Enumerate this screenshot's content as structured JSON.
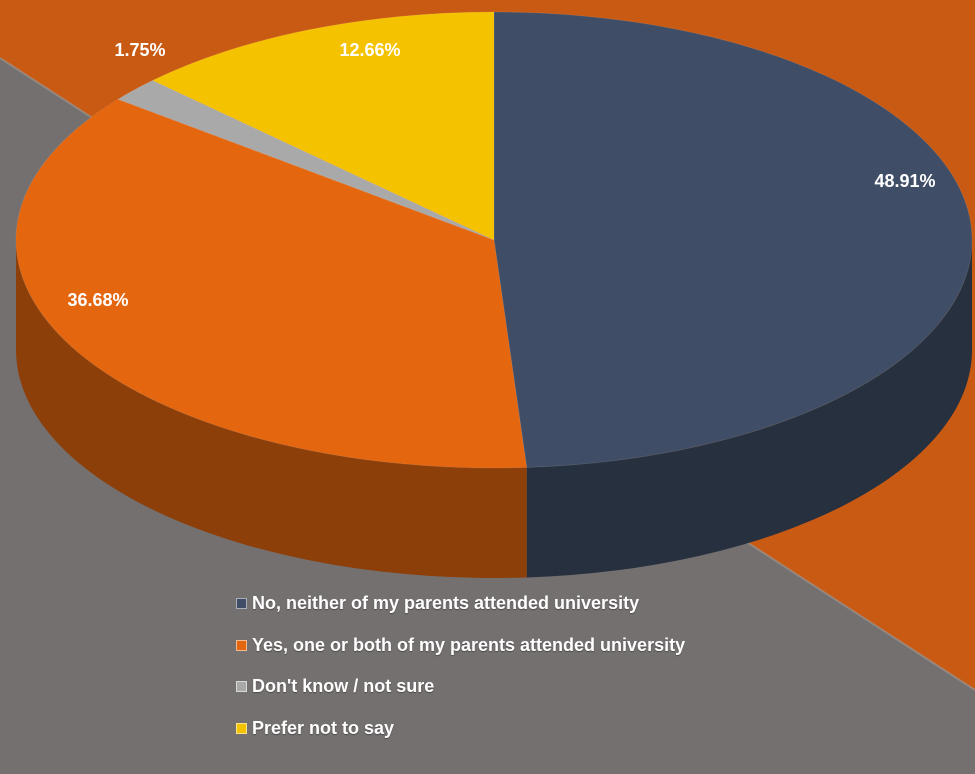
{
  "chart_data": {
    "type": "pie",
    "style": "3d",
    "categories": [
      "No, neither of my parents attended university",
      "Yes, one or both of my parents attended university",
      "Don't know / not sure",
      "Prefer not to say"
    ],
    "values": [
      48.91,
      36.68,
      1.75,
      12.66
    ],
    "value_labels": [
      "48.91%",
      "36.68%",
      "1.75%",
      "12.66%"
    ],
    "colors": [
      "#3f4e66",
      "#e4660f",
      "#a9a9a9",
      "#f5c200"
    ],
    "legend_position": "bottom",
    "title": ""
  },
  "colors": {
    "background_gray": "#757070",
    "background_orange": "#c95a14"
  }
}
